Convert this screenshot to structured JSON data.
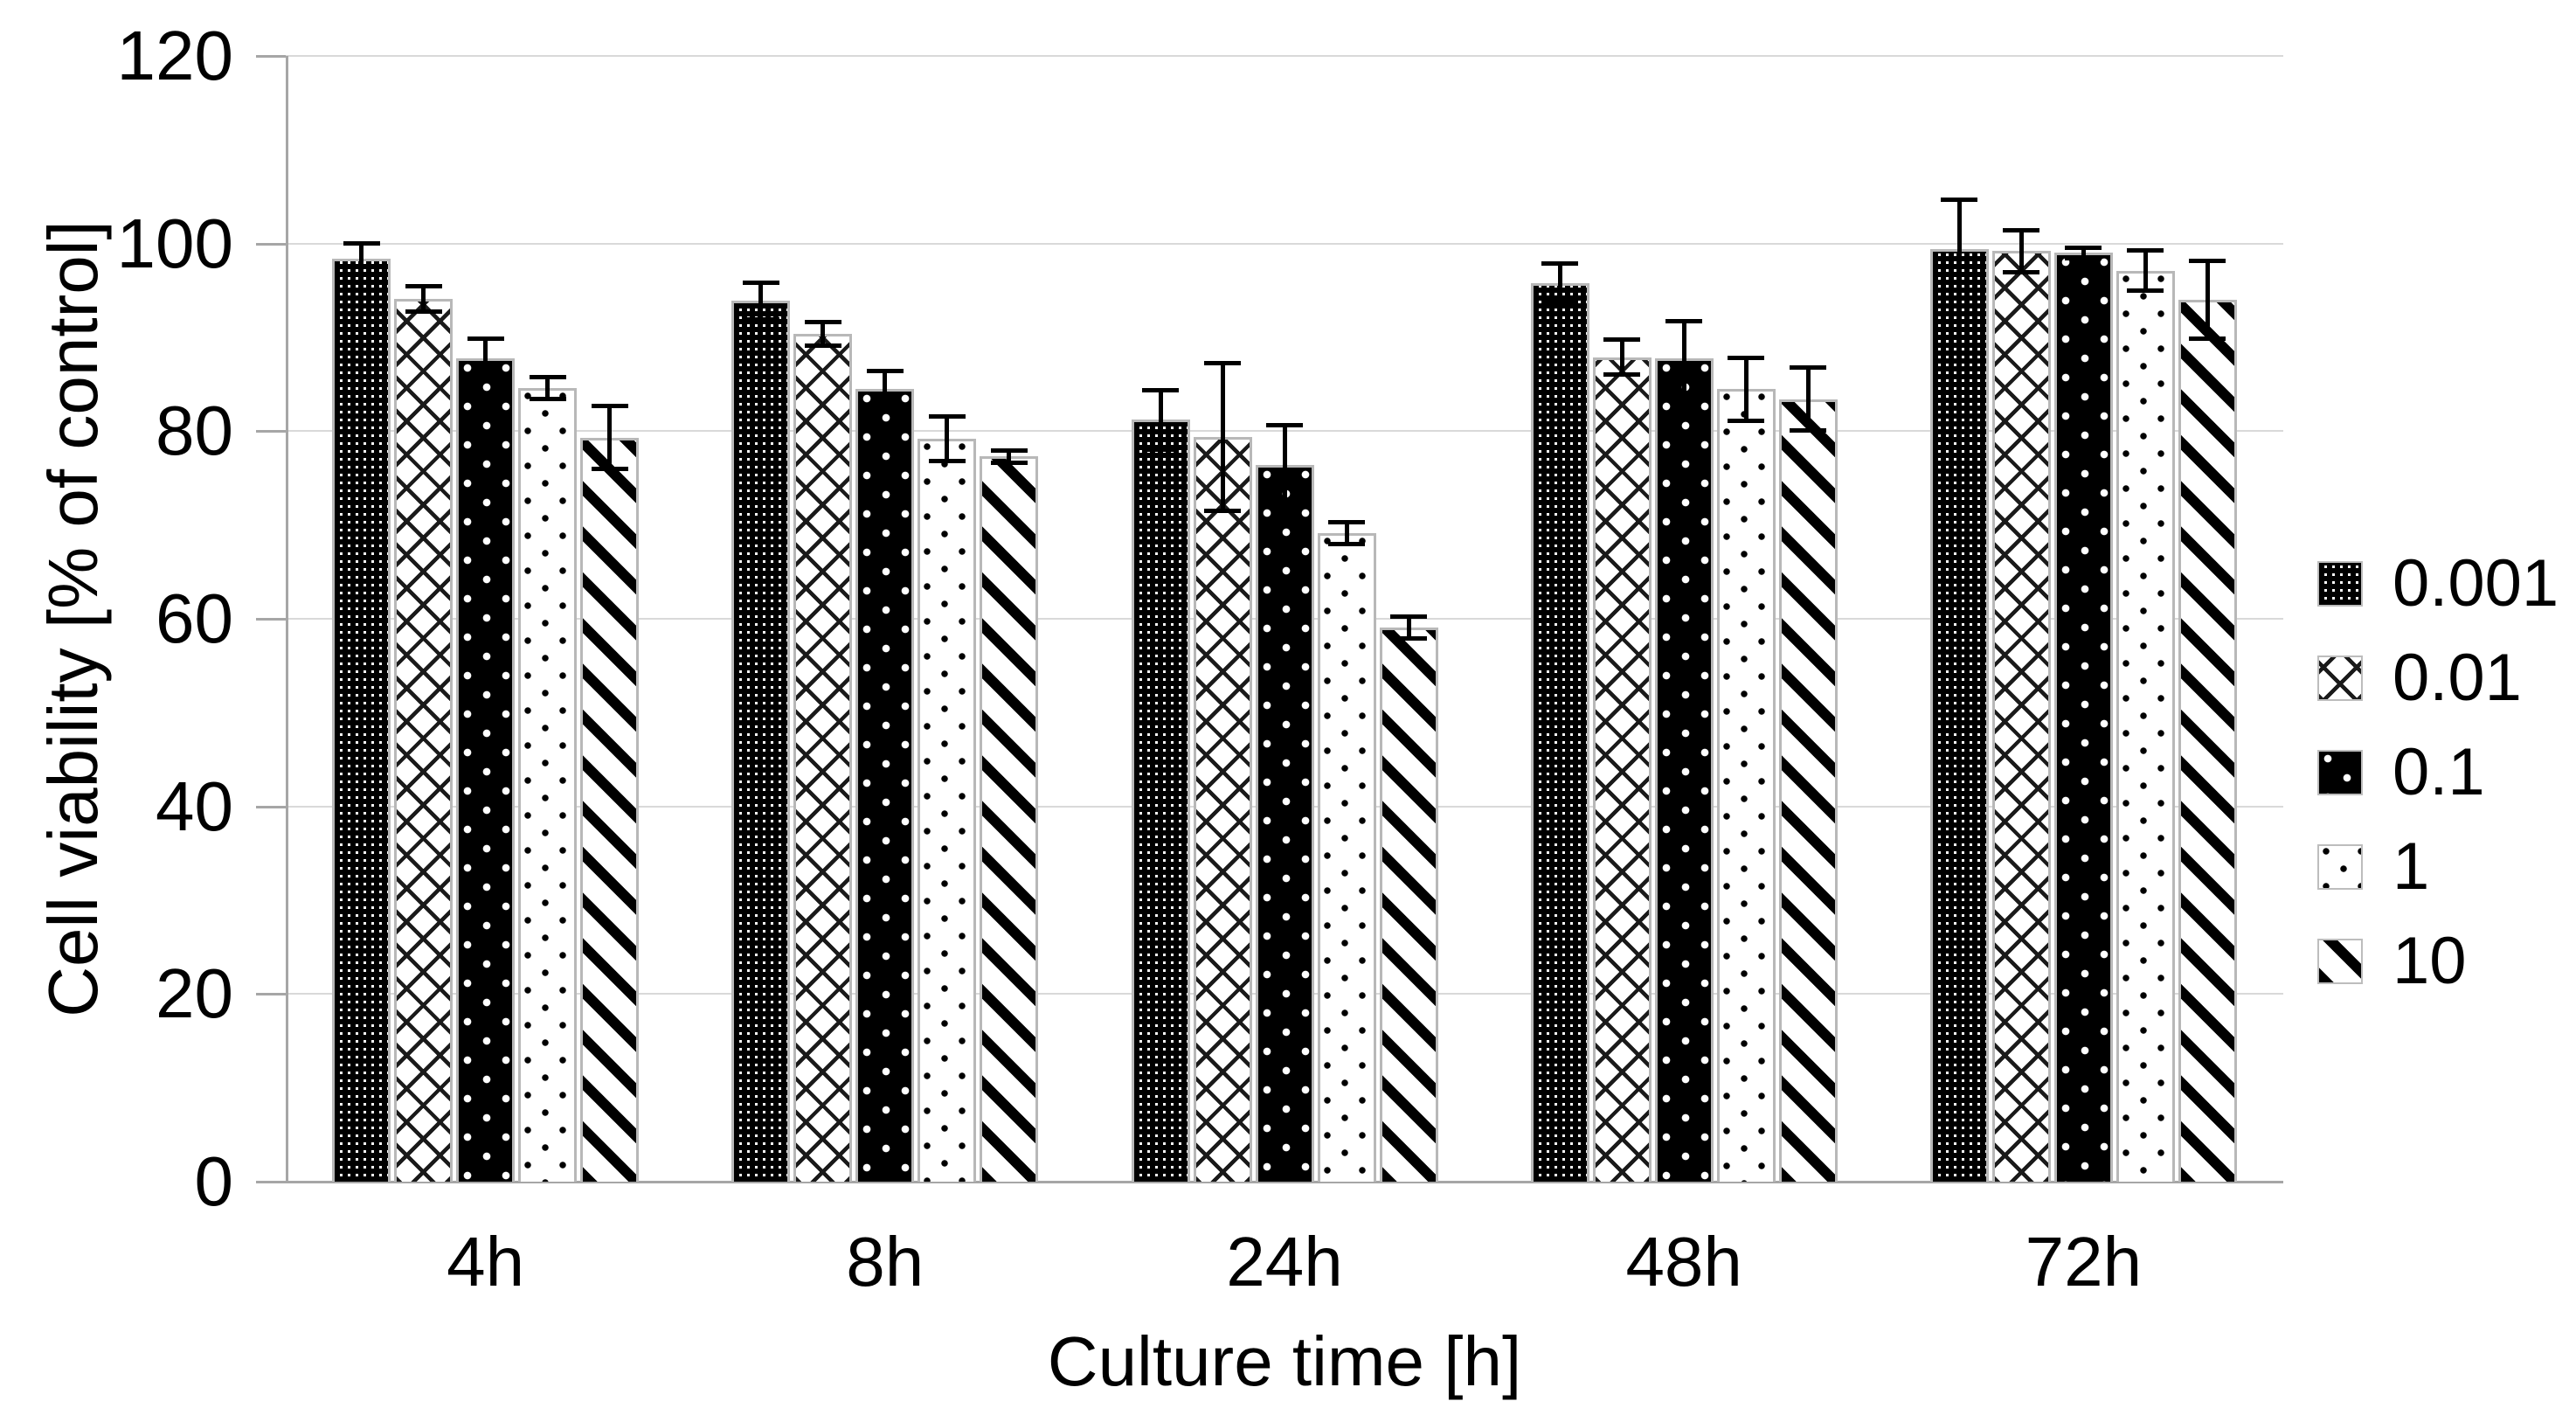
{
  "chart_data": {
    "type": "bar",
    "title": "",
    "ylabel": "Cell viability [% of control]",
    "xlabel": "Culture time [h]",
    "ylim": [
      0,
      120
    ],
    "yticks": [
      0,
      20,
      40,
      60,
      80,
      100,
      120
    ],
    "grid": true,
    "legend_position": "right",
    "categories": [
      "4h",
      "8h",
      "24h",
      "48h",
      "72h"
    ],
    "series": [
      {
        "name": "0.001",
        "pattern": "dense-weave",
        "values": [
          98.4,
          93.9,
          81.2,
          95.8,
          99.4
        ],
        "errors": [
          1.7,
          2.0,
          3.2,
          2.1,
          5.3
        ]
      },
      {
        "name": "0.01",
        "pattern": "crosshatch",
        "values": [
          94.1,
          90.4,
          79.4,
          87.9,
          99.2
        ],
        "errors": [
          1.4,
          1.3,
          7.9,
          1.9,
          2.3
        ]
      },
      {
        "name": "0.1",
        "pattern": "black-white-dots",
        "values": [
          87.8,
          84.5,
          76.4,
          87.8,
          99.0
        ],
        "errors": [
          2.1,
          2.0,
          4.3,
          4.0,
          0.6
        ]
      },
      {
        "name": "1",
        "pattern": "white-black-dots",
        "values": [
          84.6,
          79.2,
          69.1,
          84.5,
          97.1
        ],
        "errors": [
          1.2,
          2.4,
          1.2,
          3.4,
          2.2
        ]
      },
      {
        "name": "10",
        "pattern": "diagonal-stripes",
        "values": [
          79.3,
          77.3,
          59.1,
          83.4,
          94.0
        ],
        "errors": [
          3.4,
          0.7,
          1.2,
          3.4,
          4.2
        ]
      }
    ],
    "colors": {
      "bar_border": "#b8b8b8",
      "gridline": "#d9d9d9",
      "axis": "#a6a6a6",
      "text": "#000000",
      "error_bar": "#000000"
    }
  }
}
